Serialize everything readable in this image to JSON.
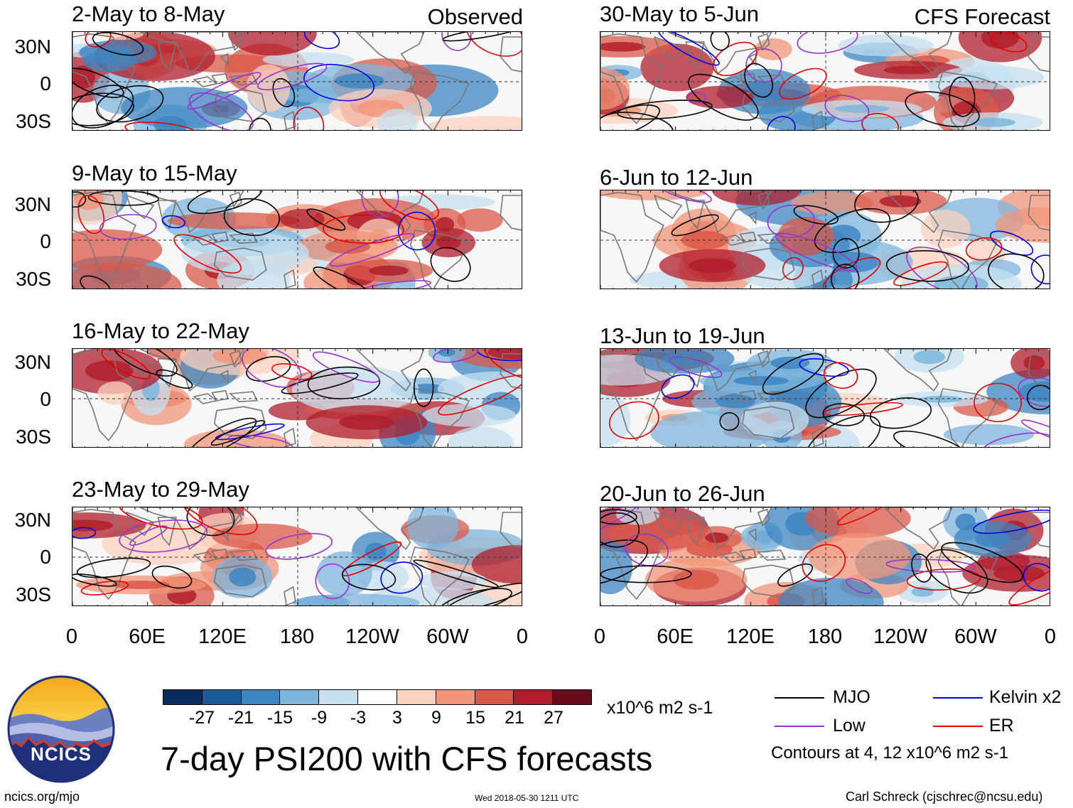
{
  "panels_left_header": "Observed",
  "panels_right_header": "CFS Forecast",
  "observed_panels": [
    {
      "title": "2-May to 8-May"
    },
    {
      "title": "9-May to 15-May"
    },
    {
      "title": "16-May to 22-May"
    },
    {
      "title": "23-May to 29-May"
    }
  ],
  "forecast_panels": [
    {
      "title": "30-May to 5-Jun"
    },
    {
      "title": "6-Jun to 12-Jun"
    },
    {
      "title": "13-Jun to 19-Jun"
    },
    {
      "title": "20-Jun to 26-Jun"
    }
  ],
  "lat_labels": [
    "30N",
    "0",
    "30S"
  ],
  "lon_labels": [
    "0",
    "60E",
    "120E",
    "180",
    "120W",
    "60W",
    "0"
  ],
  "colorbar": {
    "ticks": [
      "-27",
      "-21",
      "-15",
      "-9",
      "-3",
      "3",
      "9",
      "15",
      "21",
      "27"
    ],
    "units": "x10^6 m2 s-1",
    "colors": [
      "#0a2c5c",
      "#1d5a9a",
      "#3e86c2",
      "#7db6dc",
      "#c6e0f0",
      "#ffffff",
      "#fbd2bd",
      "#f1967a",
      "#d9584a",
      "#b01e2c",
      "#680b1a"
    ]
  },
  "legend": {
    "items": [
      {
        "label": "MJO",
        "color": "#000000"
      },
      {
        "label": "Kelvin x2",
        "color": "#0000e6"
      },
      {
        "label": "Low",
        "color": "#9a32cd"
      },
      {
        "label": "ER",
        "color": "#e60000"
      }
    ],
    "note": "Contours at 4, 12 x10^6 m2 s-1"
  },
  "main_title": "7-day PSI200 with CFS forecasts",
  "logo_text": "NCICS",
  "footer": {
    "url": "ncics.org/mjo",
    "timestamp": "Wed 2018-05-30 1211 UTC",
    "credit": "Carl Schreck (cjschrec@ncsu.edu)"
  }
}
